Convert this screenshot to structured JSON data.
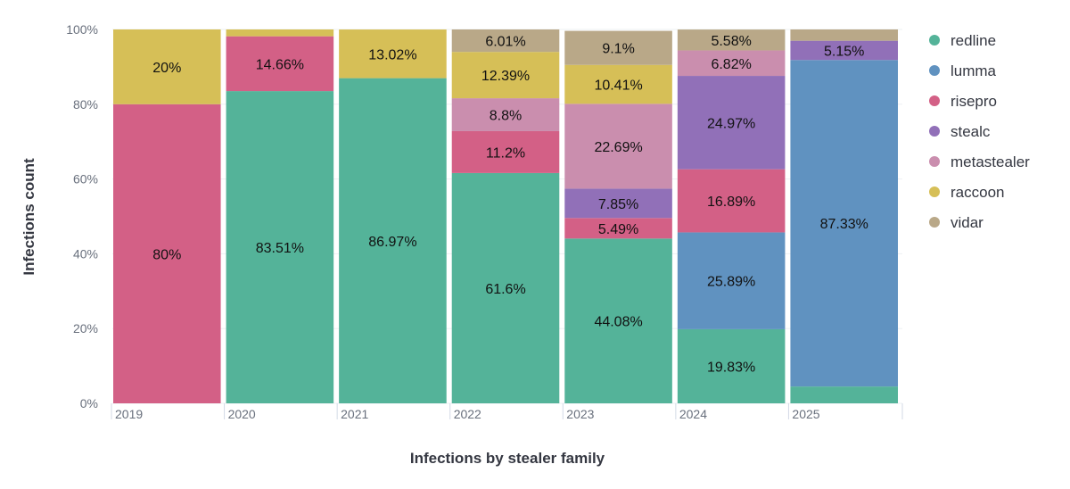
{
  "chart_data": {
    "type": "bar",
    "stacked": "percent",
    "xlabel": "Infections by stealer family",
    "ylabel": "Infections count",
    "ylim": [
      0,
      100
    ],
    "yticks": [
      "0%",
      "20%",
      "40%",
      "60%",
      "80%",
      "100%"
    ],
    "categories": [
      "2019",
      "2020",
      "2021",
      "2022",
      "2023",
      "2024",
      "2025"
    ],
    "legend_position": "right",
    "series": [
      {
        "name": "redline",
        "color": "#54b399",
        "values": [
          0,
          83.51,
          86.97,
          61.6,
          44.08,
          19.83,
          4.5
        ],
        "labels": [
          "",
          "83.51%",
          "86.97%",
          "61.6%",
          "44.08%",
          "19.83%",
          ""
        ]
      },
      {
        "name": "lumma",
        "color": "#6092c0",
        "values": [
          0,
          0,
          0,
          0,
          0,
          25.89,
          87.33
        ],
        "labels": [
          "",
          "",
          "",
          "",
          "",
          "25.89%",
          "87.33%"
        ]
      },
      {
        "name": "risepro",
        "color": "#d36086",
        "values": [
          80,
          14.66,
          0,
          11.2,
          5.49,
          16.89,
          0
        ],
        "labels": [
          "80%",
          "14.66%",
          "",
          "11.2%",
          "5.49%",
          "16.89%",
          ""
        ]
      },
      {
        "name": "stealc",
        "color": "#9170b8",
        "values": [
          0,
          0,
          0,
          0,
          7.85,
          24.97,
          5.15
        ],
        "labels": [
          "",
          "",
          "",
          "",
          "7.85%",
          "24.97%",
          "5.15%"
        ]
      },
      {
        "name": "metastealer",
        "color": "#ca8eae",
        "values": [
          0,
          0,
          0,
          8.8,
          22.69,
          6.82,
          0
        ],
        "labels": [
          "",
          "",
          "",
          "8.8%",
          "22.69%",
          "6.82%",
          ""
        ]
      },
      {
        "name": "raccoon",
        "color": "#d6bf57",
        "values": [
          20,
          1.83,
          13.02,
          12.39,
          10.41,
          0,
          0
        ],
        "labels": [
          "20%",
          "",
          "13.02%",
          "12.39%",
          "10.41%",
          "",
          ""
        ]
      },
      {
        "name": "vidar",
        "color": "#b9a888",
        "values": [
          0,
          0,
          0,
          6.01,
          9.1,
          5.58,
          3.02
        ],
        "labels": [
          "",
          "",
          "",
          "6.01%",
          "9.1%",
          "5.58%",
          ""
        ]
      }
    ]
  }
}
